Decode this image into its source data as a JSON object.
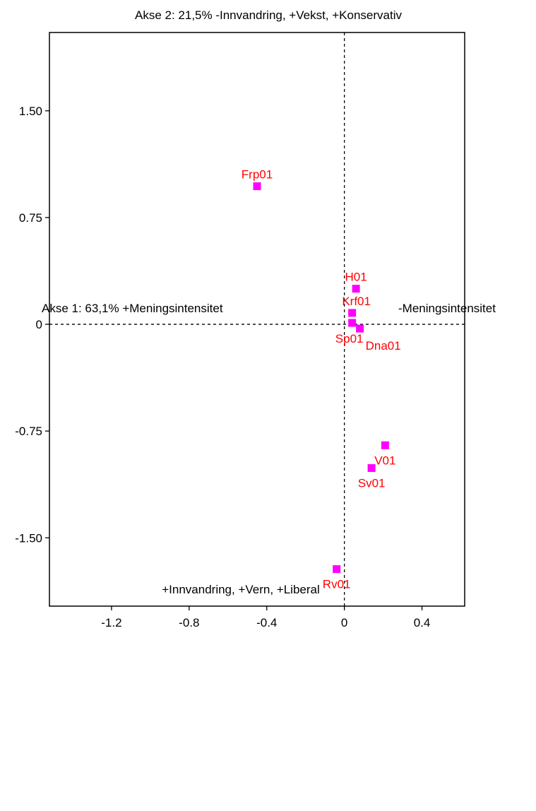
{
  "chart_data": {
    "type": "scatter",
    "title": "Akse 2: 21,5% -Innvandring, +Vekst, +Konservativ",
    "axis_labels": {
      "top": "Akse 2: 21,5% -Innvandring, +Vekst, +Konservativ",
      "bottom": "+Innvandring, +Vern, +Liberal",
      "left": "Akse 1: 63,1% +Meningsintensitet",
      "right": "-Meningsintensitet"
    },
    "xlim": [
      -1.52,
      0.62
    ],
    "ylim": [
      -1.98,
      2.05
    ],
    "x_ticks": [
      {
        "value": -1.2,
        "label": "-1.2"
      },
      {
        "value": -0.8,
        "label": "-0.8"
      },
      {
        "value": -0.4,
        "label": "-0.4"
      },
      {
        "value": 0,
        "label": "0"
      },
      {
        "value": 0.4,
        "label": "0.4"
      }
    ],
    "y_ticks": [
      {
        "value": 1.5,
        "label": "1.50"
      },
      {
        "value": 0.75,
        "label": "0.75"
      },
      {
        "value": 0,
        "label": "0"
      },
      {
        "value": -0.75,
        "label": "-0.75"
      },
      {
        "value": -1.5,
        "label": "-1.50"
      }
    ],
    "origin_lines": "dashed",
    "grid": false,
    "marker_color": "#ff00ff",
    "label_color": "#ff0000",
    "points": [
      {
        "label": "Frp01",
        "x": -0.45,
        "y": 0.97,
        "label_pos": "above"
      },
      {
        "label": "H01",
        "x": 0.06,
        "y": 0.25,
        "label_pos": "above"
      },
      {
        "label": "Krf01",
        "x": 0.04,
        "y": 0.08,
        "label_pos": "above"
      },
      {
        "label": "Sp01",
        "x": 0.04,
        "y": 0.01,
        "label_pos": "below-left"
      },
      {
        "label": "Dna01",
        "x": 0.08,
        "y": -0.03,
        "label_pos": "below-right"
      },
      {
        "label": "V01",
        "x": 0.21,
        "y": -0.85,
        "label_pos": "below"
      },
      {
        "label": "Sv01",
        "x": 0.14,
        "y": -1.01,
        "label_pos": "below"
      },
      {
        "label": "Rv01",
        "x": -0.04,
        "y": -1.72,
        "label_pos": "below"
      }
    ]
  }
}
